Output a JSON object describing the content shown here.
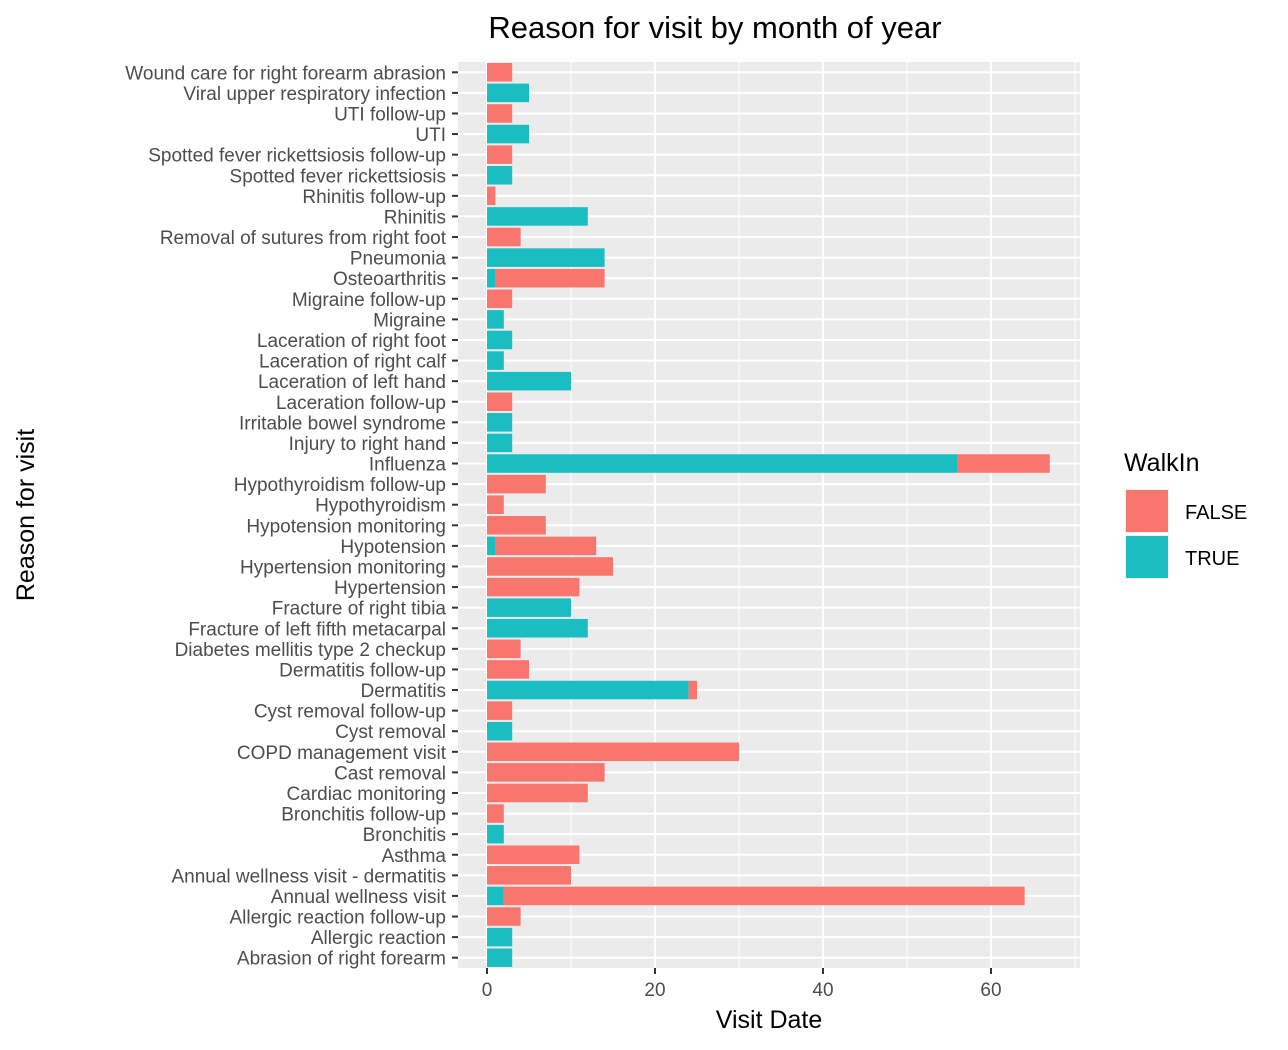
{
  "chart_data": {
    "type": "bar",
    "orientation": "horizontal",
    "stacked": true,
    "title": "Reason for visit by month of year",
    "xlabel": "Visit Date",
    "ylabel": "Reason for visit",
    "xlim": [
      0,
      70
    ],
    "xticks": [
      0,
      20,
      40,
      60
    ],
    "grid": true,
    "legend": {
      "title": "WalkIn",
      "position": "right"
    },
    "categories": [
      "Abrasion of right forearm",
      "Allergic reaction",
      "Allergic reaction follow-up",
      "Annual wellness visit",
      "Annual wellness visit - dermatitis",
      "Asthma",
      "Bronchitis",
      "Bronchitis follow-up",
      "Cardiac monitoring",
      "Cast removal",
      "COPD management visit",
      "Cyst removal",
      "Cyst removal follow-up",
      "Dermatitis",
      "Dermatitis follow-up",
      "Diabetes mellitis type 2 checkup",
      "Fracture of left fifth metacarpal",
      "Fracture of right tibia",
      "Hypertension",
      "Hypertension monitoring",
      "Hypotension",
      "Hypotension monitoring",
      "Hypothyroidism",
      "Hypothyroidism follow-up",
      "Influenza",
      "Injury to right hand",
      "Irritable bowel syndrome",
      "Laceration follow-up",
      "Laceration of left hand",
      "Laceration of right calf",
      "Laceration of right foot",
      "Migraine",
      "Migraine follow-up",
      "Osteoarthritis",
      "Pneumonia",
      "Removal of sutures from right foot",
      "Rhinitis",
      "Rhinitis follow-up",
      "Spotted fever rickettsiosis",
      "Spotted fever rickettsiosis follow-up",
      "UTI",
      "UTI follow-up",
      "Viral upper respiratory infection",
      "Wound care for right forearm abrasion"
    ],
    "series": [
      {
        "name": "TRUE",
        "color": "#19BDC2",
        "values": [
          3,
          3,
          0,
          2,
          0,
          0,
          2,
          0,
          0,
          0,
          0,
          3,
          0,
          24,
          0,
          0,
          12,
          10,
          0,
          0,
          1,
          0,
          0,
          0,
          56,
          3,
          3,
          0,
          10,
          2,
          3,
          2,
          0,
          1,
          14,
          0,
          12,
          0,
          3,
          0,
          5,
          0,
          5,
          0
        ]
      },
      {
        "name": "FALSE",
        "color": "#F8766D",
        "values": [
          0,
          0,
          4,
          62,
          10,
          11,
          0,
          2,
          12,
          14,
          30,
          0,
          3,
          1,
          5,
          4,
          0,
          0,
          11,
          15,
          12,
          7,
          2,
          7,
          11,
          0,
          0,
          3,
          0,
          0,
          0,
          0,
          3,
          13,
          0,
          4,
          0,
          1,
          0,
          3,
          0,
          3,
          0,
          3
        ]
      }
    ],
    "legend_order": [
      "FALSE",
      "TRUE"
    ]
  }
}
